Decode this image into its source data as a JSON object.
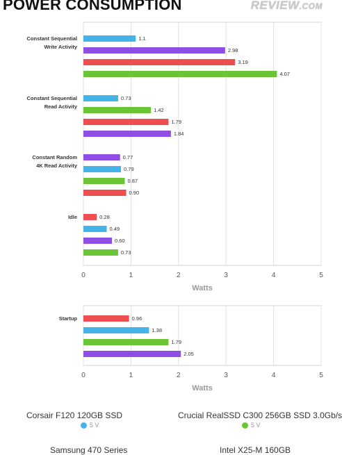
{
  "title": "POWER CONSUMPTION",
  "logo": {
    "main": "REVIEW",
    "suffix": ".COM"
  },
  "colors": {
    "corsair": "#44b4e8",
    "crucial": "#6ac534",
    "samsung": "#8e4ee6",
    "intel": "#ef4e51"
  },
  "chart_data": [
    {
      "type": "bar",
      "orientation": "horizontal",
      "xlabel": "Watts",
      "xlim": [
        0,
        5
      ],
      "xticks": [
        0,
        1,
        2,
        3,
        4,
        5
      ],
      "grid": true,
      "categories": [
        {
          "label": [
            "Constant Sequential",
            "Write Activity"
          ],
          "bars": [
            {
              "series": "corsair",
              "value": 1.1,
              "text": "1.1"
            },
            {
              "series": "samsung",
              "value": 2.98,
              "text": "2.98"
            },
            {
              "series": "intel",
              "value": 3.19,
              "text": "3.19"
            },
            {
              "series": "crucial",
              "value": 4.07,
              "text": "4.07"
            }
          ]
        },
        {
          "label": [
            "Constant Sequential",
            "Read Activity"
          ],
          "bars": [
            {
              "series": "corsair",
              "value": 0.73,
              "text": "0.73"
            },
            {
              "series": "crucial",
              "value": 1.42,
              "text": "1.42"
            },
            {
              "series": "intel",
              "value": 1.79,
              "text": "1.79"
            },
            {
              "series": "samsung",
              "value": 1.84,
              "text": "1.84"
            }
          ]
        },
        {
          "label": [
            "Constant Random",
            "4K Read Activity"
          ],
          "bars": [
            {
              "series": "samsung",
              "value": 0.77,
              "text": "0.77"
            },
            {
              "series": "corsair",
              "value": 0.79,
              "text": "0.79"
            },
            {
              "series": "crucial",
              "value": 0.87,
              "text": "0.87"
            },
            {
              "series": "intel",
              "value": 0.9,
              "text": "0.90"
            }
          ]
        },
        {
          "label": [
            "Idle"
          ],
          "bars": [
            {
              "series": "intel",
              "value": 0.28,
              "text": "0.28"
            },
            {
              "series": "corsair",
              "value": 0.49,
              "text": "0.49"
            },
            {
              "series": "samsung",
              "value": 0.6,
              "text": "0.60"
            },
            {
              "series": "crucial",
              "value": 0.73,
              "text": "0.73"
            }
          ]
        }
      ]
    },
    {
      "type": "bar",
      "orientation": "horizontal",
      "xlabel": "Watts",
      "xlim": [
        0,
        5
      ],
      "xticks": [
        0,
        1,
        2,
        3,
        4,
        5
      ],
      "grid": true,
      "categories": [
        {
          "label": [
            "Startup"
          ],
          "bars": [
            {
              "series": "intel",
              "value": 0.96,
              "text": "0.96"
            },
            {
              "series": "corsair",
              "value": 1.38,
              "text": "1.38"
            },
            {
              "series": "crucial",
              "value": 1.79,
              "text": "1.79"
            },
            {
              "series": "samsung",
              "value": 2.05,
              "text": "2.05"
            }
          ]
        }
      ]
    }
  ],
  "legend": {
    "placement": "bottom",
    "items": [
      {
        "key": "corsair",
        "name": "Corsair F120 120GB SSD",
        "sub": "5 V"
      },
      {
        "key": "crucial",
        "name": "Crucial RealSSD C300 256GB SSD 3.0Gb/s",
        "sub": "5 V"
      },
      {
        "key": "samsung",
        "name": "Samsung 470 Series",
        "sub": ""
      },
      {
        "key": "intel",
        "name": "Intel X25-M 160GB",
        "sub": ""
      }
    ]
  }
}
